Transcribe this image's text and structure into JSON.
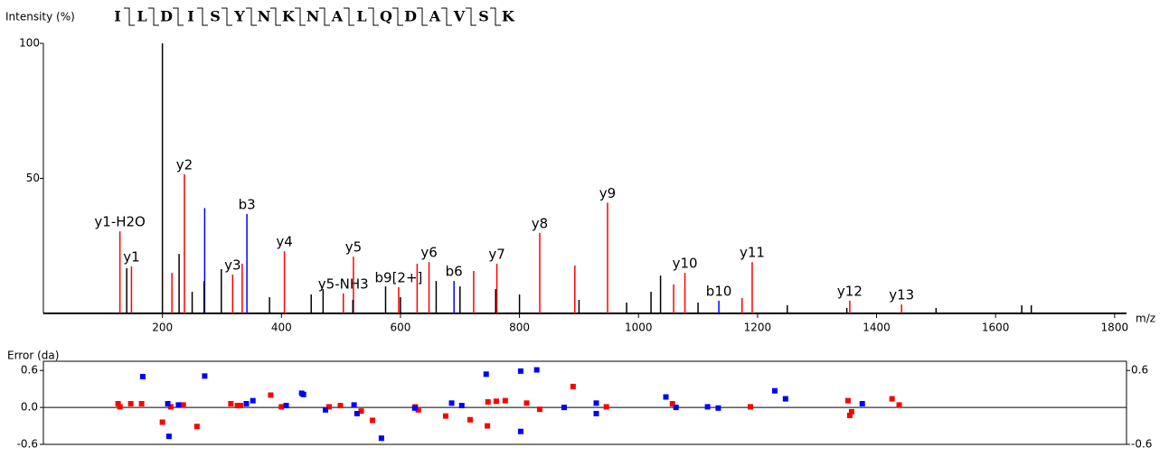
{
  "chart_data": [
    {
      "type": "stem",
      "sequence": [
        "I",
        "L",
        "D",
        "I",
        "S",
        "Y",
        "N",
        "K",
        "N",
        "A",
        "L",
        "Q",
        "D",
        "A",
        "V",
        "S",
        "K"
      ],
      "ylabel": "Intensity (%)",
      "xlabel": "m/z",
      "xlim": [
        0,
        1820
      ],
      "ylim": [
        0,
        100
      ],
      "xticks": [
        200,
        400,
        600,
        800,
        1000,
        1200,
        1400,
        1600,
        1800
      ],
      "yticks": [
        50,
        100
      ],
      "series": [
        {
          "color": "#ff0000",
          "x": [
            128.6,
            148,
            216,
            237,
            318,
            334,
            405,
            504,
            521,
            597,
            628,
            648,
            723,
            762,
            834,
            893,
            948,
            1059,
            1078,
            1174,
            1191,
            1355,
            1442
          ],
          "values": [
            30.4,
            17.4,
            15,
            51.5,
            14.4,
            18.4,
            23,
            7.4,
            21,
            9.7,
            18.4,
            19,
            15.7,
            18.4,
            29.8,
            17.7,
            41,
            10.7,
            15,
            5.7,
            19,
            4.7,
            3.3
          ],
          "labels": [
            "y1-H2O",
            "y1",
            null,
            "y2",
            "y3",
            null,
            "y4",
            "y5-NH3",
            "y5",
            "b9[2+]",
            null,
            "y6",
            null,
            "y7",
            "y8",
            null,
            "y9",
            null,
            "y10",
            null,
            "y11",
            "y12",
            "y13"
          ]
        },
        {
          "color": "#0000ff",
          "x": [
            271,
            342,
            690,
            1135
          ],
          "values": [
            39,
            36.8,
            12,
            4.7
          ],
          "labels": [
            null,
            "b3",
            "b6",
            "b10"
          ]
        },
        {
          "color": "#000000",
          "x": [
            140,
            200,
            228,
            250,
            270,
            299,
            380,
            450,
            470,
            520,
            575,
            600,
            660,
            700,
            760,
            800,
            900,
            980,
            1021,
            1037,
            1100,
            1250,
            1350,
            1500,
            1644,
            1660
          ],
          "values": [
            16.7,
            100,
            22,
            8,
            12,
            16.4,
            6,
            7,
            9,
            5,
            10,
            6,
            12,
            10,
            9,
            7,
            5,
            4,
            8,
            14,
            4,
            3,
            2,
            2,
            3,
            3
          ]
        }
      ]
    },
    {
      "type": "scatter",
      "ylabel": "Error (da)",
      "xlim": [
        0,
        1820
      ],
      "ylim": [
        -0.6,
        0.75
      ],
      "y2lim": [
        -0.6,
        0.75
      ],
      "yticks": [
        0.6,
        {
          "value": 0,
          "label": "0.0"
        },
        -0.6
      ],
      "y2ticks": [
        0.6,
        -0.6
      ],
      "series": [
        {
          "color": "#ff0000",
          "x": [
            125.5,
            128.6,
            146.8,
            165,
            200,
            214,
            235,
            258,
            315,
            326,
            331,
            382,
            400,
            480,
            499,
            534,
            553,
            625,
            630,
            676,
            717,
            746,
            747,
            761,
            776,
            812,
            834,
            890,
            946,
            1057,
            1188,
            1352,
            1358,
            1355,
            1426,
            1438
          ],
          "values": [
            0.06,
            0.01,
            0.06,
            0.06,
            -0.24,
            0.01,
            0.04,
            -0.31,
            0.06,
            0.03,
            0.03,
            0.2,
            0.01,
            0.01,
            0.03,
            -0.06,
            -0.21,
            0.01,
            -0.04,
            -0.14,
            -0.2,
            -0.3,
            0.09,
            0.1,
            0.11,
            0.07,
            -0.03,
            0.34,
            0.01,
            0.06,
            0.01,
            0.11,
            -0.07,
            -0.13,
            0.14,
            0.04
          ]
        },
        {
          "color": "#0000ff",
          "x": [
            167,
            209,
            211,
            227,
            271,
            341,
            352,
            408,
            434,
            437,
            474,
            522,
            527,
            568,
            624,
            686,
            703,
            744,
            802,
            802,
            829,
            875,
            929,
            929,
            1046,
            1063,
            1116,
            1134,
            1229,
            1247,
            1376
          ],
          "values": [
            0.5,
            0.06,
            -0.47,
            0.04,
            0.51,
            0.06,
            0.11,
            0.03,
            0.23,
            0.21,
            -0.04,
            0.04,
            -0.1,
            -0.5,
            -0.01,
            0.07,
            0.03,
            0.54,
            0.59,
            -0.39,
            0.61,
            0,
            0.07,
            -0.1,
            0.17,
            0,
            0.01,
            -0.01,
            0.27,
            0.14,
            0.06
          ]
        }
      ]
    }
  ]
}
